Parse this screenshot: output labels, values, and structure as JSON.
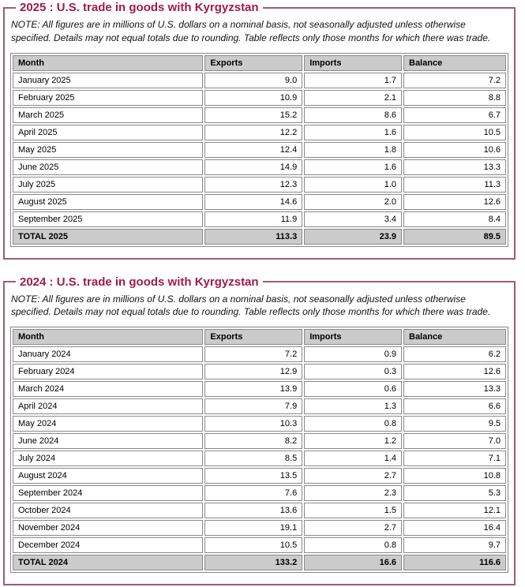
{
  "colors": {
    "title_accent": "#9E1B4D",
    "frame_border": "#9F5C70",
    "table_header_bg": "#CBCBCB",
    "table_border": "#888888"
  },
  "sections": [
    {
      "title": "2025 : U.S. trade in goods with Kyrgyzstan",
      "note": "NOTE: All figures are in millions of U.S. dollars on a nominal basis, not seasonally adjusted unless otherwise specified. Details may not equal totals due to rounding. Table reflects only those months for which there was trade.",
      "columns": [
        "Month",
        "Exports",
        "Imports",
        "Balance"
      ],
      "rows": [
        [
          "January 2025",
          "9.0",
          "1.7",
          "7.2"
        ],
        [
          "February 2025",
          "10.9",
          "2.1",
          "8.8"
        ],
        [
          "March 2025",
          "15.2",
          "8.6",
          "6.7"
        ],
        [
          "April 2025",
          "12.2",
          "1.6",
          "10.5"
        ],
        [
          "May 2025",
          "12.4",
          "1.8",
          "10.6"
        ],
        [
          "June 2025",
          "14.9",
          "1.6",
          "13.3"
        ],
        [
          "July 2025",
          "12.3",
          "1.0",
          "11.3"
        ],
        [
          "August 2025",
          "14.6",
          "2.0",
          "12.6"
        ],
        [
          "September 2025",
          "11.9",
          "3.4",
          "8.4"
        ]
      ],
      "total_row": [
        "TOTAL 2025",
        "113.3",
        "23.9",
        "89.5"
      ]
    },
    {
      "title": "2024 : U.S. trade in goods with Kyrgyzstan",
      "note": "NOTE: All figures are in millions of U.S. dollars on a nominal basis, not seasonally adjusted unless otherwise specified. Details may not equal totals due to rounding. Table reflects only those months for which there was trade.",
      "columns": [
        "Month",
        "Exports",
        "Imports",
        "Balance"
      ],
      "rows": [
        [
          "January 2024",
          "7.2",
          "0.9",
          "6.2"
        ],
        [
          "February 2024",
          "12.9",
          "0.3",
          "12.6"
        ],
        [
          "March 2024",
          "13.9",
          "0.6",
          "13.3"
        ],
        [
          "April 2024",
          "7.9",
          "1.3",
          "6.6"
        ],
        [
          "May 2024",
          "10.3",
          "0.8",
          "9.5"
        ],
        [
          "June 2024",
          "8.2",
          "1.2",
          "7.0"
        ],
        [
          "July 2024",
          "8.5",
          "1.4",
          "7.1"
        ],
        [
          "August 2024",
          "13.5",
          "2.7",
          "10.8"
        ],
        [
          "September 2024",
          "7.6",
          "2.3",
          "5.3"
        ],
        [
          "October 2024",
          "13.6",
          "1.5",
          "12.1"
        ],
        [
          "November 2024",
          "19.1",
          "2.7",
          "16.4"
        ],
        [
          "December 2024",
          "10.5",
          "0.8",
          "9.7"
        ]
      ],
      "total_row": [
        "TOTAL 2024",
        "133.2",
        "16.6",
        "116.6"
      ]
    }
  ]
}
